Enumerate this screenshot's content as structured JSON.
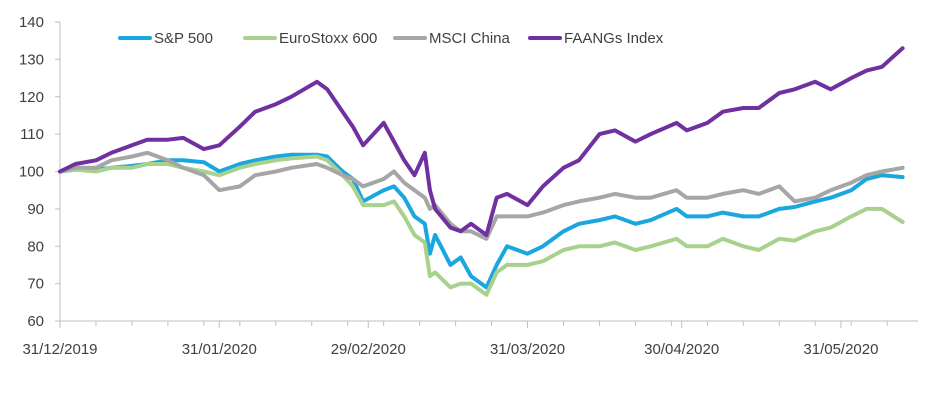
{
  "chart_data": {
    "type": "line",
    "title": "",
    "xlabel": "",
    "ylabel": "",
    "ylim": [
      60,
      140
    ],
    "yticks": [
      60,
      70,
      80,
      90,
      100,
      110,
      120,
      130,
      140
    ],
    "xlim": [
      "2019-12-31",
      "2020-06-15"
    ],
    "xticks": [
      "31/12/2019",
      "31/01/2020",
      "29/02/2020",
      "31/03/2020",
      "30/04/2020",
      "31/05/2020"
    ],
    "grid": false,
    "legend_position": "top",
    "series": [
      {
        "name": "S&P 500",
        "color": "#1aa7e0",
        "points": [
          [
            "2019-12-31",
            100
          ],
          [
            "2020-01-03",
            100.5
          ],
          [
            "2020-01-07",
            100.5
          ],
          [
            "2020-01-10",
            101
          ],
          [
            "2020-01-14",
            101.5
          ],
          [
            "2020-01-17",
            102
          ],
          [
            "2020-01-21",
            103
          ],
          [
            "2020-01-24",
            103
          ],
          [
            "2020-01-28",
            102.5
          ],
          [
            "2020-01-31",
            100
          ],
          [
            "2020-02-04",
            102
          ],
          [
            "2020-02-07",
            103
          ],
          [
            "2020-02-11",
            104
          ],
          [
            "2020-02-14",
            104.5
          ],
          [
            "2020-02-19",
            104.5
          ],
          [
            "2020-02-21",
            104
          ],
          [
            "2020-02-24",
            100
          ],
          [
            "2020-02-26",
            98
          ],
          [
            "2020-02-28",
            92
          ],
          [
            "2020-03-03",
            95
          ],
          [
            "2020-03-05",
            96
          ],
          [
            "2020-03-07",
            93
          ],
          [
            "2020-03-09",
            88
          ],
          [
            "2020-03-11",
            86
          ],
          [
            "2020-03-12",
            78
          ],
          [
            "2020-03-13",
            83
          ],
          [
            "2020-03-16",
            75
          ],
          [
            "2020-03-18",
            77
          ],
          [
            "2020-03-20",
            72
          ],
          [
            "2020-03-23",
            69
          ],
          [
            "2020-03-25",
            75
          ],
          [
            "2020-03-27",
            80
          ],
          [
            "2020-03-31",
            78
          ],
          [
            "2020-04-03",
            80
          ],
          [
            "2020-04-07",
            84
          ],
          [
            "2020-04-10",
            86
          ],
          [
            "2020-04-14",
            87
          ],
          [
            "2020-04-17",
            88
          ],
          [
            "2020-04-21",
            86
          ],
          [
            "2020-04-24",
            87
          ],
          [
            "2020-04-29",
            90
          ],
          [
            "2020-05-01",
            88
          ],
          [
            "2020-05-05",
            88
          ],
          [
            "2020-05-08",
            89
          ],
          [
            "2020-05-12",
            88
          ],
          [
            "2020-05-15",
            88
          ],
          [
            "2020-05-19",
            90
          ],
          [
            "2020-05-22",
            90.5
          ],
          [
            "2020-05-26",
            92
          ],
          [
            "2020-05-29",
            93
          ],
          [
            "2020-06-02",
            95
          ],
          [
            "2020-06-05",
            98
          ],
          [
            "2020-06-08",
            99
          ],
          [
            "2020-06-12",
            98.5
          ]
        ]
      },
      {
        "name": "EuroStoxx 600",
        "color": "#a9d18e",
        "points": [
          [
            "2019-12-31",
            100
          ],
          [
            "2020-01-03",
            100.5
          ],
          [
            "2020-01-07",
            100
          ],
          [
            "2020-01-10",
            101
          ],
          [
            "2020-01-14",
            101
          ],
          [
            "2020-01-17",
            102
          ],
          [
            "2020-01-21",
            102
          ],
          [
            "2020-01-24",
            101
          ],
          [
            "2020-01-28",
            100
          ],
          [
            "2020-01-31",
            99
          ],
          [
            "2020-02-04",
            101
          ],
          [
            "2020-02-07",
            102
          ],
          [
            "2020-02-11",
            103
          ],
          [
            "2020-02-14",
            103.5
          ],
          [
            "2020-02-19",
            104
          ],
          [
            "2020-02-21",
            103
          ],
          [
            "2020-02-24",
            99
          ],
          [
            "2020-02-26",
            96
          ],
          [
            "2020-02-28",
            91
          ],
          [
            "2020-03-03",
            91
          ],
          [
            "2020-03-05",
            92
          ],
          [
            "2020-03-07",
            88
          ],
          [
            "2020-03-09",
            83
          ],
          [
            "2020-03-11",
            81
          ],
          [
            "2020-03-12",
            72
          ],
          [
            "2020-03-13",
            73
          ],
          [
            "2020-03-16",
            69
          ],
          [
            "2020-03-18",
            70
          ],
          [
            "2020-03-20",
            70
          ],
          [
            "2020-03-23",
            67
          ],
          [
            "2020-03-25",
            73
          ],
          [
            "2020-03-27",
            75
          ],
          [
            "2020-03-31",
            75
          ],
          [
            "2020-04-03",
            76
          ],
          [
            "2020-04-07",
            79
          ],
          [
            "2020-04-10",
            80
          ],
          [
            "2020-04-14",
            80
          ],
          [
            "2020-04-17",
            81
          ],
          [
            "2020-04-21",
            79
          ],
          [
            "2020-04-24",
            80
          ],
          [
            "2020-04-29",
            82
          ],
          [
            "2020-05-01",
            80
          ],
          [
            "2020-05-05",
            80
          ],
          [
            "2020-05-08",
            82
          ],
          [
            "2020-05-12",
            80
          ],
          [
            "2020-05-15",
            79
          ],
          [
            "2020-05-19",
            82
          ],
          [
            "2020-05-22",
            81.5
          ],
          [
            "2020-05-26",
            84
          ],
          [
            "2020-05-29",
            85
          ],
          [
            "2020-06-02",
            88
          ],
          [
            "2020-06-05",
            90
          ],
          [
            "2020-06-08",
            90
          ],
          [
            "2020-06-12",
            86.5
          ]
        ]
      },
      {
        "name": "MSCI China",
        "color": "#a6a6a6",
        "points": [
          [
            "2019-12-31",
            100
          ],
          [
            "2020-01-03",
            101
          ],
          [
            "2020-01-07",
            101
          ],
          [
            "2020-01-10",
            103
          ],
          [
            "2020-01-14",
            104
          ],
          [
            "2020-01-17",
            105
          ],
          [
            "2020-01-21",
            103
          ],
          [
            "2020-01-24",
            101
          ],
          [
            "2020-01-28",
            99
          ],
          [
            "2020-01-31",
            95
          ],
          [
            "2020-02-04",
            96
          ],
          [
            "2020-02-07",
            99
          ],
          [
            "2020-02-11",
            100
          ],
          [
            "2020-02-14",
            101
          ],
          [
            "2020-02-19",
            102
          ],
          [
            "2020-02-21",
            101
          ],
          [
            "2020-02-24",
            99
          ],
          [
            "2020-02-26",
            98
          ],
          [
            "2020-02-28",
            96
          ],
          [
            "2020-03-03",
            98
          ],
          [
            "2020-03-05",
            100
          ],
          [
            "2020-03-07",
            97
          ],
          [
            "2020-03-09",
            95
          ],
          [
            "2020-03-11",
            93
          ],
          [
            "2020-03-12",
            90
          ],
          [
            "2020-03-13",
            91
          ],
          [
            "2020-03-16",
            86
          ],
          [
            "2020-03-18",
            84
          ],
          [
            "2020-03-20",
            84
          ],
          [
            "2020-03-23",
            82
          ],
          [
            "2020-03-25",
            88
          ],
          [
            "2020-03-27",
            88
          ],
          [
            "2020-03-31",
            88
          ],
          [
            "2020-04-03",
            89
          ],
          [
            "2020-04-07",
            91
          ],
          [
            "2020-04-10",
            92
          ],
          [
            "2020-04-14",
            93
          ],
          [
            "2020-04-17",
            94
          ],
          [
            "2020-04-21",
            93
          ],
          [
            "2020-04-24",
            93
          ],
          [
            "2020-04-29",
            95
          ],
          [
            "2020-05-01",
            93
          ],
          [
            "2020-05-05",
            93
          ],
          [
            "2020-05-08",
            94
          ],
          [
            "2020-05-12",
            95
          ],
          [
            "2020-05-15",
            94
          ],
          [
            "2020-05-19",
            96
          ],
          [
            "2020-05-22",
            92
          ],
          [
            "2020-05-26",
            93
          ],
          [
            "2020-05-29",
            95
          ],
          [
            "2020-06-02",
            97
          ],
          [
            "2020-06-05",
            99
          ],
          [
            "2020-06-08",
            100
          ],
          [
            "2020-06-12",
            101
          ]
        ]
      },
      {
        "name": "FAANGs Index",
        "color": "#7030a0",
        "points": [
          [
            "2019-12-31",
            100
          ],
          [
            "2020-01-03",
            102
          ],
          [
            "2020-01-07",
            103
          ],
          [
            "2020-01-10",
            105
          ],
          [
            "2020-01-14",
            107
          ],
          [
            "2020-01-17",
            108.5
          ],
          [
            "2020-01-21",
            108.5
          ],
          [
            "2020-01-24",
            109
          ],
          [
            "2020-01-28",
            106
          ],
          [
            "2020-01-31",
            107
          ],
          [
            "2020-02-04",
            112
          ],
          [
            "2020-02-07",
            116
          ],
          [
            "2020-02-11",
            118
          ],
          [
            "2020-02-14",
            120
          ],
          [
            "2020-02-19",
            124
          ],
          [
            "2020-02-21",
            122
          ],
          [
            "2020-02-24",
            116
          ],
          [
            "2020-02-26",
            112
          ],
          [
            "2020-02-28",
            107
          ],
          [
            "2020-03-03",
            113
          ],
          [
            "2020-03-05",
            108
          ],
          [
            "2020-03-07",
            103
          ],
          [
            "2020-03-09",
            99
          ],
          [
            "2020-03-11",
            105
          ],
          [
            "2020-03-12",
            95
          ],
          [
            "2020-03-13",
            90
          ],
          [
            "2020-03-16",
            85
          ],
          [
            "2020-03-18",
            84
          ],
          [
            "2020-03-20",
            86
          ],
          [
            "2020-03-23",
            83
          ],
          [
            "2020-03-25",
            93
          ],
          [
            "2020-03-27",
            94
          ],
          [
            "2020-03-31",
            91
          ],
          [
            "2020-04-03",
            96
          ],
          [
            "2020-04-07",
            101
          ],
          [
            "2020-04-10",
            103
          ],
          [
            "2020-04-14",
            110
          ],
          [
            "2020-04-17",
            111
          ],
          [
            "2020-04-21",
            108
          ],
          [
            "2020-04-24",
            110
          ],
          [
            "2020-04-29",
            113
          ],
          [
            "2020-05-01",
            111
          ],
          [
            "2020-05-05",
            113
          ],
          [
            "2020-05-08",
            116
          ],
          [
            "2020-05-12",
            117
          ],
          [
            "2020-05-15",
            117
          ],
          [
            "2020-05-19",
            121
          ],
          [
            "2020-05-22",
            122
          ],
          [
            "2020-05-26",
            124
          ],
          [
            "2020-05-29",
            122
          ],
          [
            "2020-06-02",
            125
          ],
          [
            "2020-06-05",
            127
          ],
          [
            "2020-06-08",
            128
          ],
          [
            "2020-06-12",
            133
          ]
        ]
      }
    ]
  }
}
